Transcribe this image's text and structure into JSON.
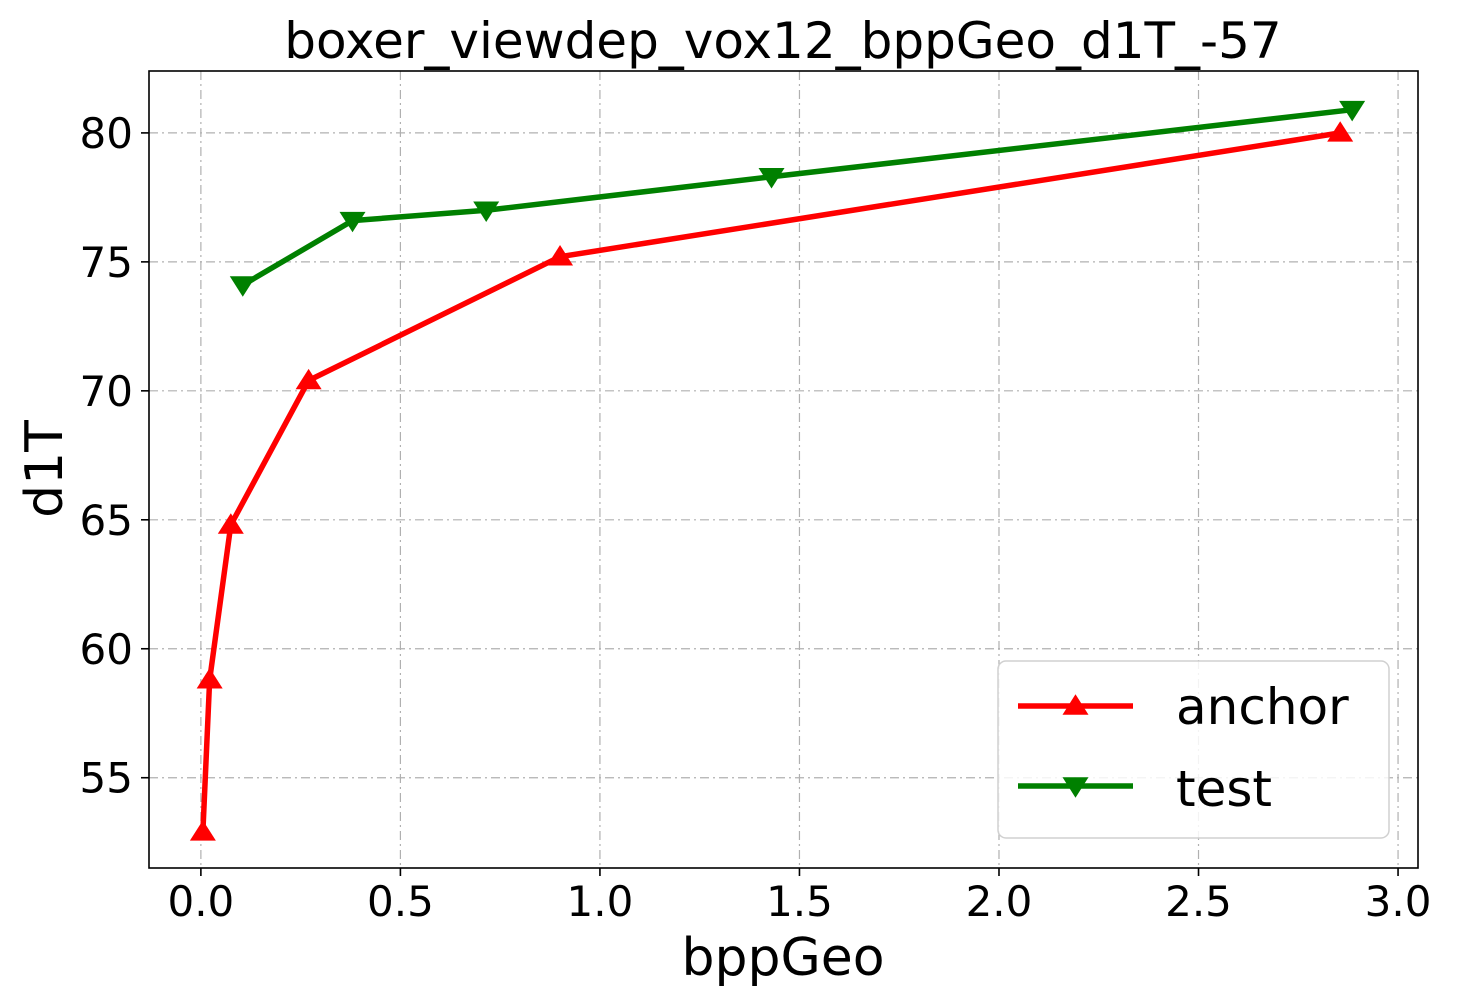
{
  "chart_data": {
    "type": "line",
    "title": "boxer_viewdep_vox12_bppGeo_d1T_-57",
    "xlabel": "bppGeo",
    "ylabel": "d1T",
    "xlim": [
      -0.13,
      3.05
    ],
    "ylim": [
      51.5,
      82.4
    ],
    "xticks": [
      0.0,
      0.5,
      1.0,
      1.5,
      2.0,
      2.5,
      3.0
    ],
    "xtick_labels": [
      "0.0",
      "0.5",
      "1.0",
      "1.5",
      "2.0",
      "2.5",
      "3.0"
    ],
    "yticks": [
      55,
      60,
      65,
      70,
      75,
      80
    ],
    "ytick_labels": [
      "55",
      "60",
      "65",
      "70",
      "75",
      "80"
    ],
    "grid": true,
    "legend_position": "lower-right",
    "series": [
      {
        "name": "anchor",
        "color": "#ff0000",
        "marker": "triangle-up",
        "x": [
          0.005,
          0.022,
          0.075,
          0.27,
          0.9,
          2.855
        ],
        "y": [
          52.9,
          58.8,
          64.8,
          70.4,
          75.2,
          80.0
        ]
      },
      {
        "name": "test",
        "color": "#008000",
        "marker": "triangle-down",
        "x": [
          0.105,
          0.38,
          0.715,
          1.43,
          2.885
        ],
        "y": [
          74.1,
          76.6,
          77.0,
          78.3,
          80.9
        ]
      }
    ]
  }
}
